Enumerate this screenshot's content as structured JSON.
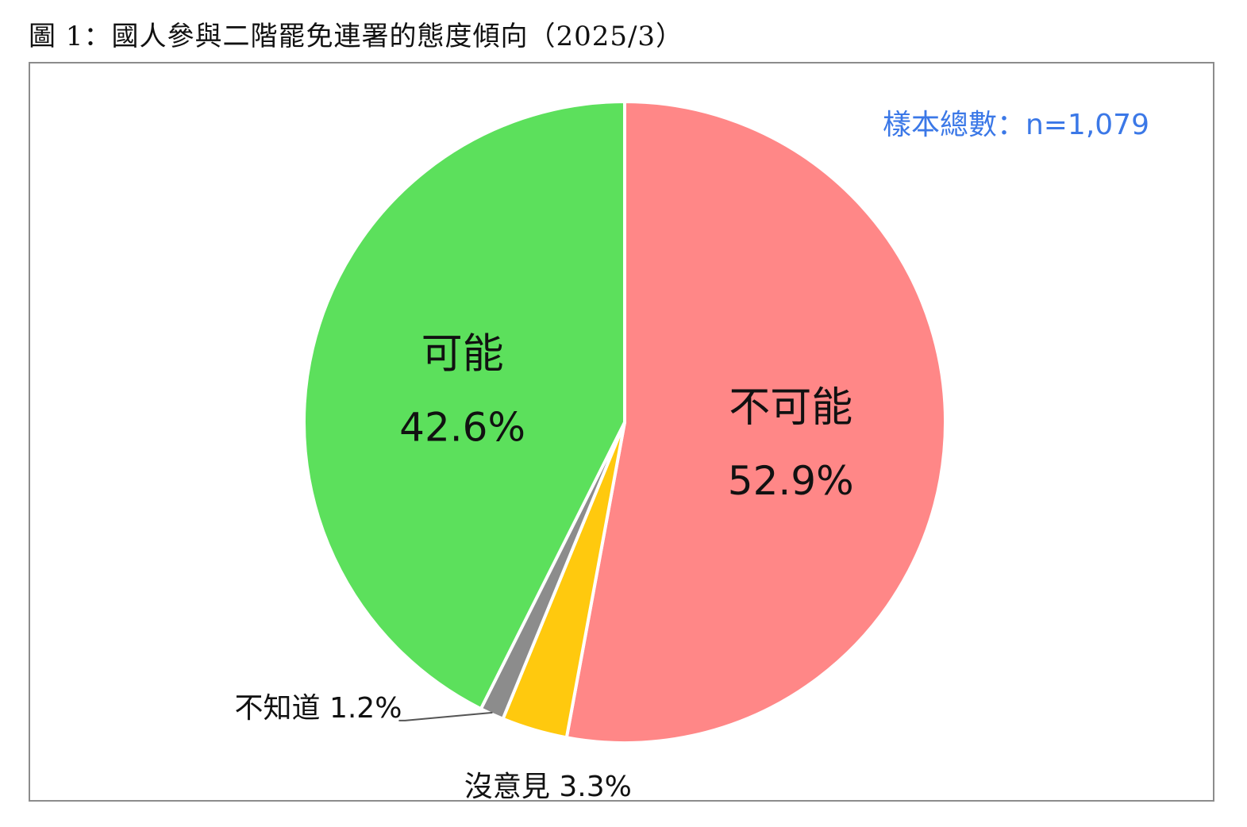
{
  "figure": {
    "title": "圖 1：國人參與二階罷免連署的態度傾向（2025/3）",
    "sample_note": "樣本總數：n=1,079"
  },
  "chart_data": {
    "type": "pie",
    "title": "圖 1：國人參與二階罷免連署的態度傾向（2025/3）",
    "note": "樣本總數：n=1,079",
    "slices": [
      {
        "label": "不可能",
        "value": 52.9,
        "value_text": "52.9%",
        "color": "#ff8787"
      },
      {
        "label": "沒意見",
        "value": 3.3,
        "value_text": "3.3%",
        "color": "#ffc90e"
      },
      {
        "label": "不知道",
        "value": 1.2,
        "value_text": "1.2%",
        "color": "#8c8c8c"
      },
      {
        "label": "可能",
        "value": 42.6,
        "value_text": "42.6%",
        "color": "#5ce05c"
      }
    ],
    "start": "12 o'clock",
    "direction": "clockwise"
  }
}
